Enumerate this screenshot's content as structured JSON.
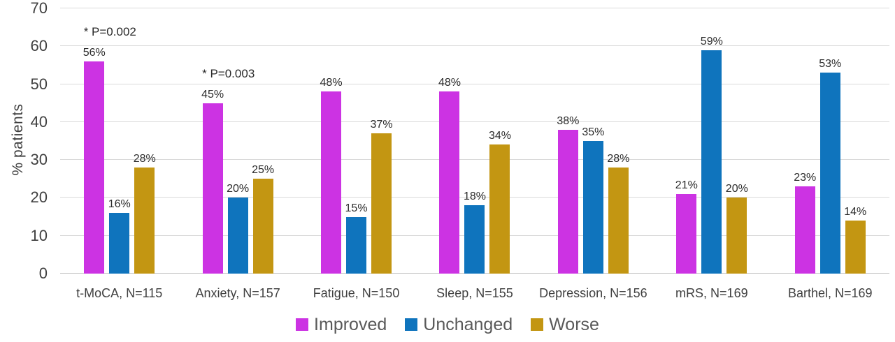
{
  "chart_data": {
    "type": "bar",
    "title": "",
    "xlabel": "",
    "ylabel": "% patients",
    "ylim": [
      0,
      70
    ],
    "yticks": [
      0,
      10,
      20,
      30,
      40,
      50,
      60,
      70
    ],
    "grid": true,
    "legend_position": "bottom",
    "value_suffix": "%",
    "categories": [
      "t-MoCA, N=115",
      "Anxiety, N=157",
      "Fatigue, N=150",
      "Sleep, N=155",
      "Depression, N=156",
      "mRS, N=169",
      "Barthel, N=169"
    ],
    "series": [
      {
        "name": "Improved",
        "color": "#cc33e3",
        "values": [
          56,
          45,
          48,
          48,
          38,
          21,
          23
        ]
      },
      {
        "name": "Unchanged",
        "color": "#0f74bd",
        "values": [
          16,
          20,
          15,
          18,
          35,
          59,
          53
        ]
      },
      {
        "name": "Worse",
        "color": "#c39612",
        "values": [
          28,
          25,
          37,
          34,
          28,
          20,
          14
        ]
      }
    ],
    "annotations": [
      {
        "text": "* P=0.002",
        "category_index": 0
      },
      {
        "text": "* P=0.003",
        "category_index": 1
      }
    ],
    "colors": {
      "gridline": "#d9d9d9",
      "baseline": "#c2c2c2",
      "axis_text": "#404040",
      "label_text": "#2b2b2b",
      "legend_text": "#595959"
    }
  }
}
